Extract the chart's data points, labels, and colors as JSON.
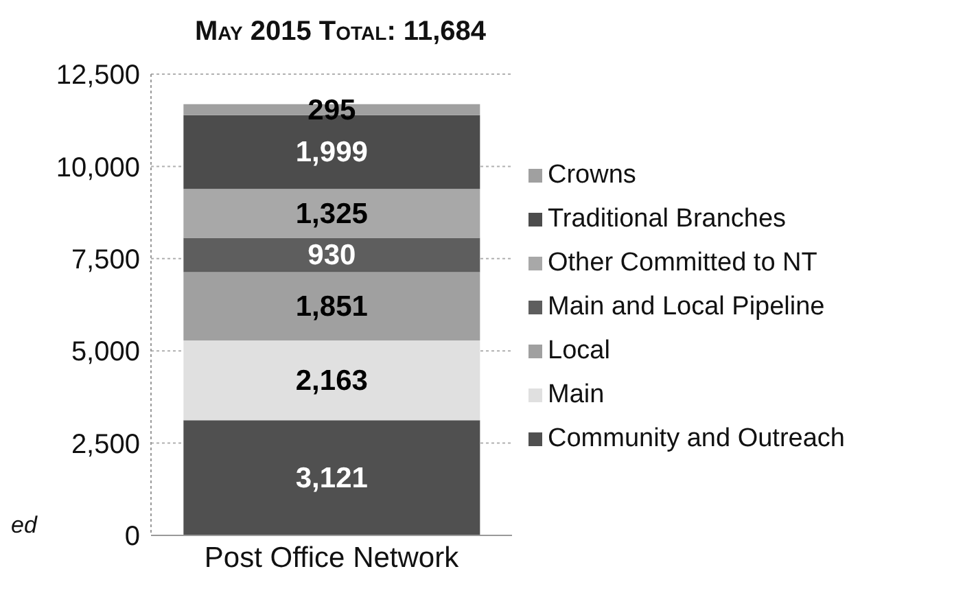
{
  "chart_data": {
    "type": "bar",
    "title": "May 2015 Total: 11,684",
    "stacked": true,
    "categories": [
      "Post Office Network"
    ],
    "series": [
      {
        "name": "Community and Outreach",
        "color": "#505050",
        "values": [
          3121
        ],
        "value_labels": [
          "3,121"
        ]
      },
      {
        "name": "Main",
        "color": "#e0e0e0",
        "values": [
          2163
        ],
        "value_labels": [
          "2,163"
        ]
      },
      {
        "name": "Local",
        "color": "#a0a0a0",
        "values": [
          1851
        ],
        "value_labels": [
          "1,851"
        ]
      },
      {
        "name": "Main and Local Pipeline",
        "color": "#5e5e5e",
        "values": [
          930
        ],
        "value_labels": [
          "930"
        ]
      },
      {
        "name": "Other Committed to NT",
        "color": "#a8a8a8",
        "values": [
          1325
        ],
        "value_labels": [
          "1,325"
        ]
      },
      {
        "name": "Traditional Branches",
        "color": "#4c4c4c",
        "values": [
          1999
        ],
        "value_labels": [
          "1,999"
        ]
      },
      {
        "name": "Crowns",
        "color": "#a0a0a0",
        "values": [
          295
        ],
        "value_labels": [
          "295"
        ]
      }
    ],
    "ylim": [
      0,
      12500
    ],
    "yticks": [
      {
        "value": 0,
        "label": "0"
      },
      {
        "value": 2500,
        "label": "2,500"
      },
      {
        "value": 5000,
        "label": "5,000"
      },
      {
        "value": 7500,
        "label": "7,500"
      },
      {
        "value": 10000,
        "label": "10,000"
      },
      {
        "value": 12500,
        "label": "12,500"
      }
    ],
    "grid": "y",
    "legend": "right",
    "annotations": [
      "ed"
    ]
  }
}
